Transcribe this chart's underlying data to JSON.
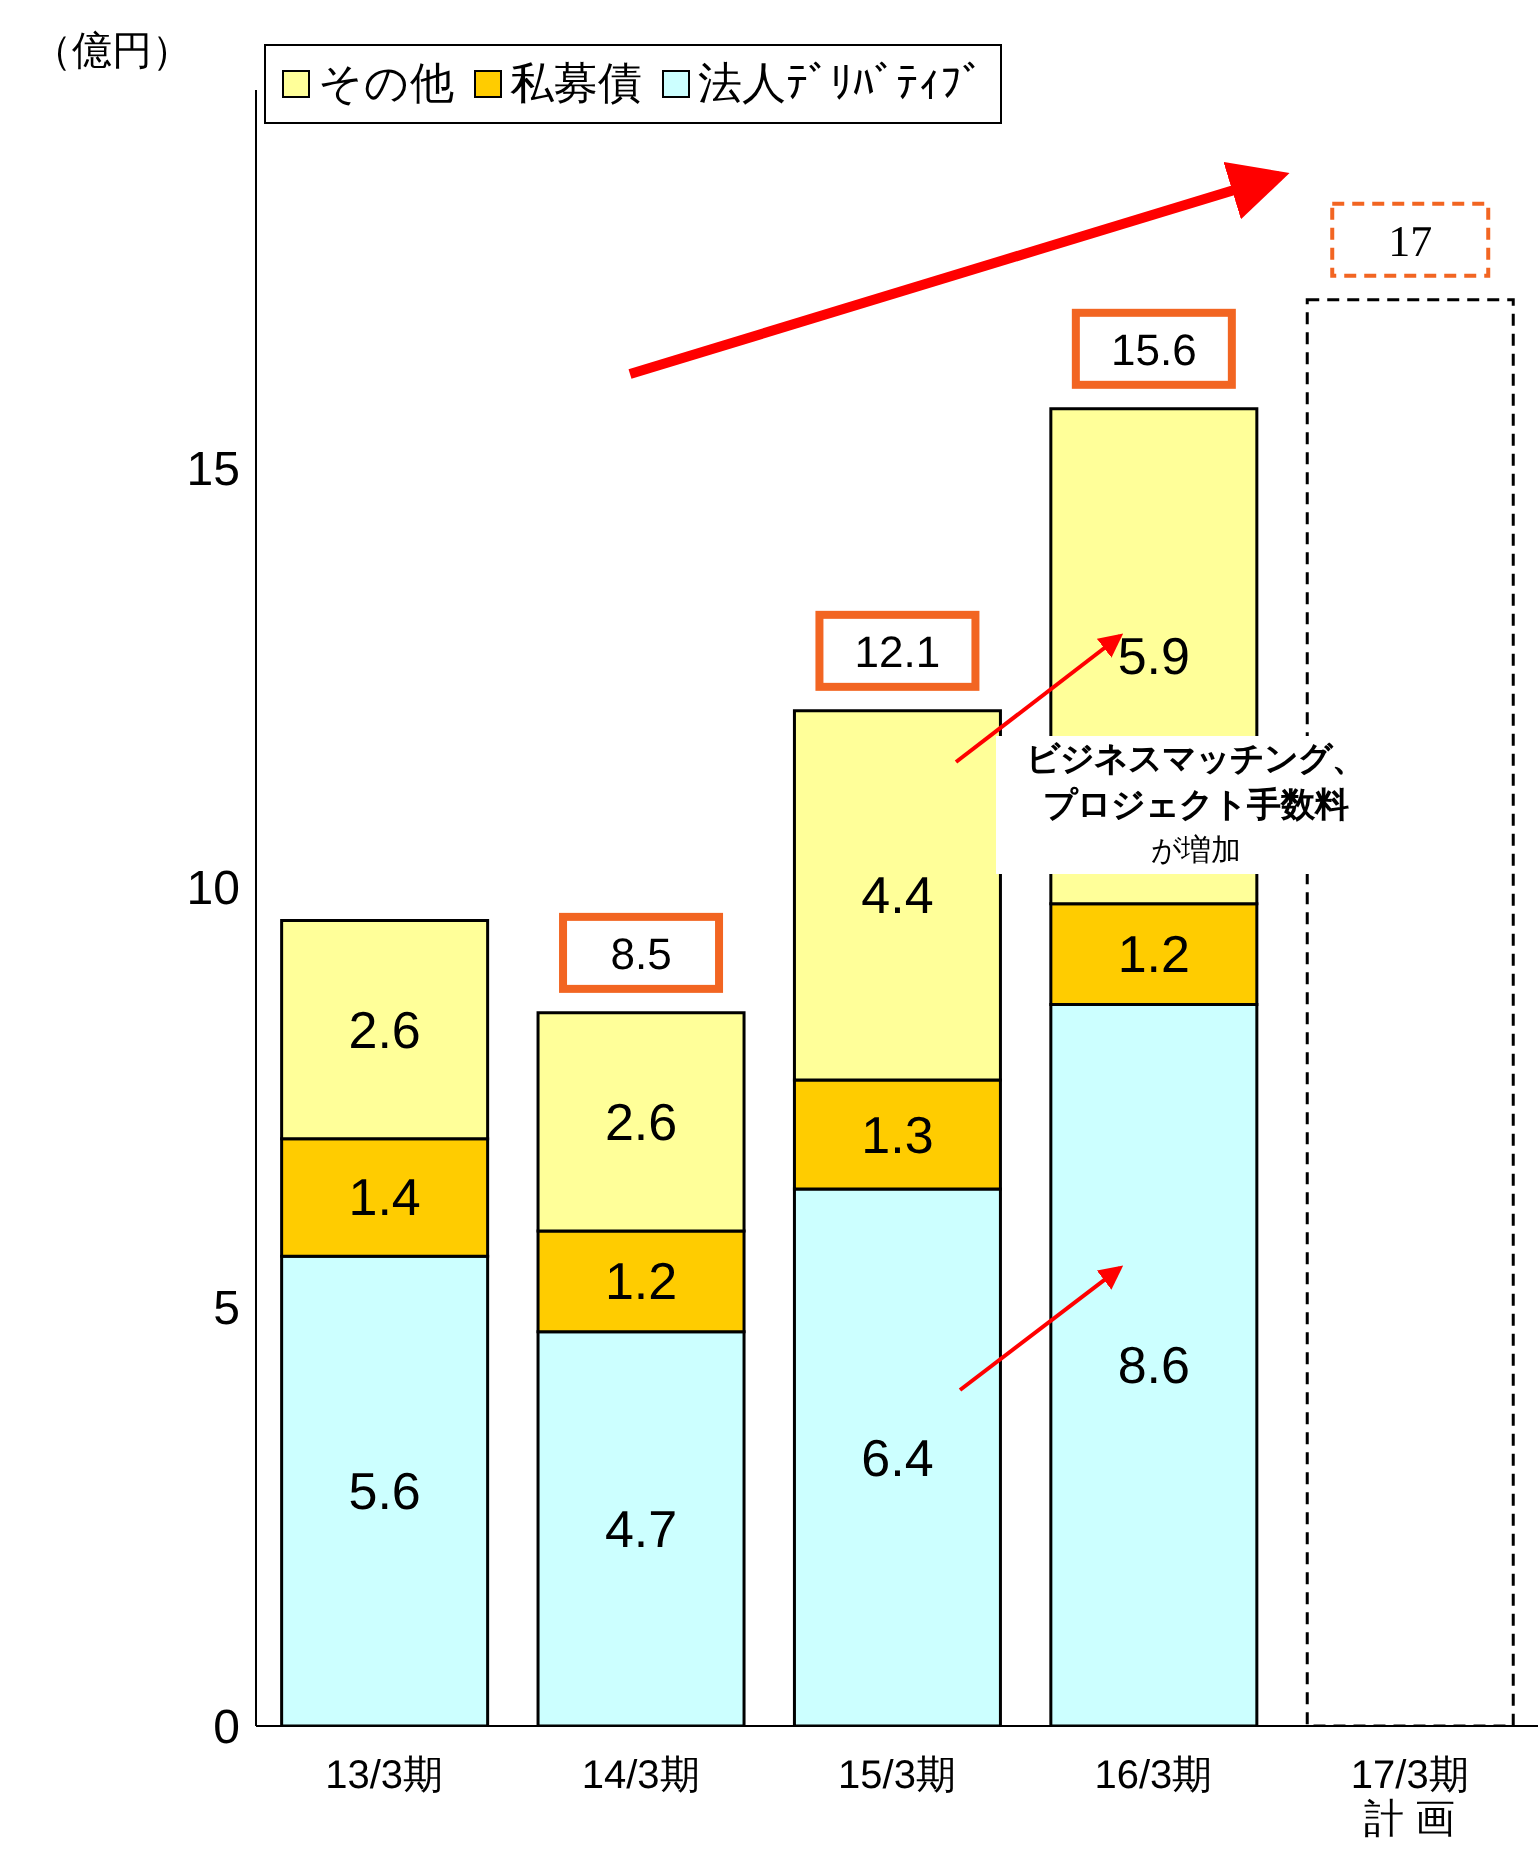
{
  "chart_data": {
    "type": "bar",
    "stacked": true,
    "ylabel": "（億円）",
    "categories": [
      "13/3期",
      "14/3期",
      "15/3期",
      "16/3期",
      "17/3期計 画"
    ],
    "series": [
      {
        "name": "法人ﾃﾞﾘﾊﾞﾃｨﾌﾞ",
        "color": "#ccffff",
        "values": [
          5.6,
          4.7,
          6.4,
          8.6,
          null
        ],
        "value_labels": [
          "5.6",
          "4.7",
          "6.4",
          "8.6",
          null
        ]
      },
      {
        "name": "私募債",
        "color": "#ffcc00",
        "values": [
          1.4,
          1.2,
          1.3,
          1.2,
          null
        ],
        "value_labels": [
          "1.4",
          "1.2",
          "1.3",
          "1.2",
          null
        ]
      },
      {
        "name": "その他",
        "color": "#ffff99",
        "values": [
          2.6,
          2.6,
          4.4,
          5.9,
          null
        ],
        "value_labels": [
          "2.6",
          "2.6",
          "4.4",
          "5.9",
          null
        ]
      },
      {
        "color": "#ffffff",
        "line_style": "dashed",
        "values": [
          null,
          null,
          null,
          null,
          17
        ],
        "value_labels": [
          null,
          null,
          null,
          null,
          null
        ]
      }
    ],
    "totals": [
      null,
      "8.5",
      "12.1",
      "15.6",
      "17"
    ],
    "ylim": [
      0,
      19.5
    ],
    "yticks": [
      0,
      5,
      10,
      15
    ],
    "grid": false,
    "legend": "top",
    "annotations": [
      "ビジネスマッチング、プロジェクト手数料",
      "が増加"
    ]
  }
}
